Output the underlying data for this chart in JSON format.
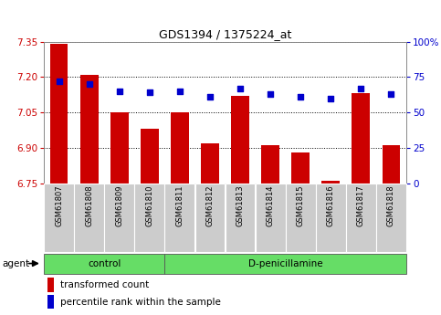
{
  "title": "GDS1394 / 1375224_at",
  "categories": [
    "GSM61807",
    "GSM61808",
    "GSM61809",
    "GSM61810",
    "GSM61811",
    "GSM61812",
    "GSM61813",
    "GSM61814",
    "GSM61815",
    "GSM61816",
    "GSM61817",
    "GSM61818"
  ],
  "bar_values": [
    7.34,
    7.21,
    7.05,
    6.98,
    7.05,
    6.92,
    7.12,
    6.91,
    6.88,
    6.76,
    7.13,
    6.91
  ],
  "percentile_values": [
    72,
    70,
    65,
    64,
    65,
    61,
    67,
    63,
    61,
    60,
    67,
    63
  ],
  "ymin": 6.75,
  "ymax": 7.35,
  "y2min": 0,
  "y2max": 100,
  "yticks": [
    6.75,
    6.9,
    7.05,
    7.2,
    7.35
  ],
  "y2ticks": [
    0,
    25,
    50,
    75,
    100
  ],
  "bar_color": "#cc0000",
  "percentile_color": "#0000cc",
  "background_color": "#ffffff",
  "plot_bg_color": "#ffffff",
  "grid_color": "#000000",
  "n_control": 4,
  "n_treatment": 8,
  "control_label": "control",
  "treatment_label": "D-penicillamine",
  "group_bg_color": "#66dd66",
  "tick_bg_color": "#cccccc",
  "legend_bar_label": "transformed count",
  "legend_pct_label": "percentile rank within the sample",
  "agent_label": "agent"
}
